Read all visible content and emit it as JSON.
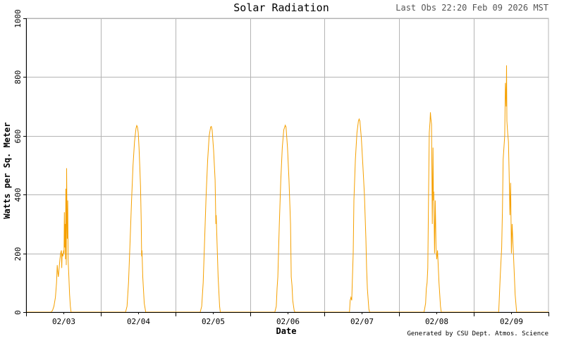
{
  "header": {
    "title": "Solar Radiation",
    "last_obs": "Last Obs 22:20 Feb 09 2026 MST"
  },
  "footer": {
    "credit": "Generated by CSU Dept. Atmos. Science"
  },
  "colors": {
    "series": "#f5a000",
    "grid": "#b4b4b4",
    "axis": "#000000",
    "background": "#ffffff"
  },
  "chart_data": {
    "type": "line",
    "title": "Solar Radiation",
    "xlabel": "Date",
    "ylabel": "Watts per Sq. Meter",
    "ylim": [
      0,
      1000
    ],
    "yticks": [
      0,
      200,
      400,
      600,
      800,
      1000
    ],
    "xlim": [
      2.667,
      9.667
    ],
    "x_unit": "day of February 2026 (fractional)",
    "xtick_labels": [
      "02/03",
      "02/04",
      "02/05",
      "02/06",
      "02/07",
      "02/08",
      "02/09"
    ],
    "xtick_positions": [
      3.167,
      4.167,
      5.167,
      6.167,
      7.167,
      8.167,
      9.167
    ],
    "grid": true,
    "legend": "none",
    "series": [
      {
        "values_format": "[x, y] where x is fractional day of February 2026 and y is W/m²",
        "points": [
          [
            2.6667,
            0
          ],
          [
            3.0,
            0
          ],
          [
            3.02,
            5
          ],
          [
            3.04,
            20
          ],
          [
            3.06,
            50
          ],
          [
            3.075,
            100
          ],
          [
            3.085,
            160
          ],
          [
            3.09,
            140
          ],
          [
            3.1,
            120
          ],
          [
            3.11,
            150
          ],
          [
            3.12,
            180
          ],
          [
            3.13,
            200
          ],
          [
            3.14,
            210
          ],
          [
            3.145,
            150
          ],
          [
            3.15,
            200
          ],
          [
            3.16,
            190
          ],
          [
            3.17,
            210
          ],
          [
            3.175,
            200
          ],
          [
            3.18,
            340
          ],
          [
            3.185,
            220
          ],
          [
            3.19,
            300
          ],
          [
            3.195,
            180
          ],
          [
            3.2,
            420
          ],
          [
            3.205,
            160
          ],
          [
            3.21,
            490
          ],
          [
            3.215,
            330
          ],
          [
            3.22,
            250
          ],
          [
            3.225,
            380
          ],
          [
            3.23,
            180
          ],
          [
            3.24,
            120
          ],
          [
            3.25,
            60
          ],
          [
            3.26,
            20
          ],
          [
            3.27,
            0
          ],
          [
            3.9,
            0
          ],
          [
            4.0,
            0
          ],
          [
            4.02,
            20
          ],
          [
            4.04,
            100
          ],
          [
            4.06,
            240
          ],
          [
            4.08,
            380
          ],
          [
            4.1,
            500
          ],
          [
            4.12,
            580
          ],
          [
            4.14,
            625
          ],
          [
            4.15,
            635
          ],
          [
            4.16,
            630
          ],
          [
            4.17,
            610
          ],
          [
            4.18,
            560
          ],
          [
            4.19,
            500
          ],
          [
            4.2,
            430
          ],
          [
            4.21,
            310
          ],
          [
            4.215,
            190
          ],
          [
            4.22,
            210
          ],
          [
            4.23,
            120
          ],
          [
            4.25,
            30
          ],
          [
            4.27,
            0
          ],
          [
            4.9,
            0
          ],
          [
            5.0,
            0
          ],
          [
            5.02,
            20
          ],
          [
            5.04,
            100
          ],
          [
            5.06,
            250
          ],
          [
            5.08,
            400
          ],
          [
            5.1,
            520
          ],
          [
            5.12,
            600
          ],
          [
            5.14,
            630
          ],
          [
            5.15,
            632
          ],
          [
            5.16,
            620
          ],
          [
            5.18,
            550
          ],
          [
            5.2,
            450
          ],
          [
            5.21,
            300
          ],
          [
            5.215,
            330
          ],
          [
            5.22,
            280
          ],
          [
            5.24,
            120
          ],
          [
            5.26,
            20
          ],
          [
            5.27,
            0
          ],
          [
            5.9,
            0
          ],
          [
            6.0,
            0
          ],
          [
            6.02,
            20
          ],
          [
            6.03,
            80
          ],
          [
            6.04,
            120
          ],
          [
            6.06,
            300
          ],
          [
            6.08,
            450
          ],
          [
            6.1,
            560
          ],
          [
            6.12,
            620
          ],
          [
            6.14,
            636
          ],
          [
            6.15,
            630
          ],
          [
            6.17,
            560
          ],
          [
            6.19,
            450
          ],
          [
            6.21,
            300
          ],
          [
            6.22,
            120
          ],
          [
            6.23,
            90
          ],
          [
            6.24,
            40
          ],
          [
            6.26,
            5
          ],
          [
            6.27,
            0
          ],
          [
            6.9,
            0
          ],
          [
            7.0,
            0
          ],
          [
            7.01,
            40
          ],
          [
            7.02,
            50
          ],
          [
            7.03,
            40
          ],
          [
            7.05,
            200
          ],
          [
            7.06,
            380
          ],
          [
            7.08,
            520
          ],
          [
            7.1,
            610
          ],
          [
            7.12,
            650
          ],
          [
            7.13,
            657
          ],
          [
            7.14,
            650
          ],
          [
            7.16,
            590
          ],
          [
            7.18,
            500
          ],
          [
            7.2,
            400
          ],
          [
            7.22,
            250
          ],
          [
            7.23,
            150
          ],
          [
            7.24,
            80
          ],
          [
            7.26,
            10
          ],
          [
            7.27,
            0
          ],
          [
            7.9,
            0
          ],
          [
            8.0,
            0
          ],
          [
            8.02,
            30
          ],
          [
            8.03,
            80
          ],
          [
            8.04,
            100
          ],
          [
            8.05,
            150
          ],
          [
            8.06,
            400
          ],
          [
            8.07,
            610
          ],
          [
            8.08,
            650
          ],
          [
            8.085,
            680
          ],
          [
            8.09,
            660
          ],
          [
            8.1,
            640
          ],
          [
            8.11,
            300
          ],
          [
            8.12,
            560
          ],
          [
            8.125,
            380
          ],
          [
            8.13,
            410
          ],
          [
            8.14,
            200
          ],
          [
            8.15,
            380
          ],
          [
            8.16,
            220
          ],
          [
            8.17,
            180
          ],
          [
            8.18,
            210
          ],
          [
            8.2,
            100
          ],
          [
            8.22,
            20
          ],
          [
            8.23,
            0
          ],
          [
            8.9,
            0
          ],
          [
            9.0,
            0
          ],
          [
            9.02,
            120
          ],
          [
            9.04,
            220
          ],
          [
            9.05,
            350
          ],
          [
            9.06,
            520
          ],
          [
            9.07,
            560
          ],
          [
            9.08,
            600
          ],
          [
            9.09,
            780
          ],
          [
            9.1,
            700
          ],
          [
            9.105,
            840
          ],
          [
            9.11,
            650
          ],
          [
            9.12,
            610
          ],
          [
            9.13,
            580
          ],
          [
            9.14,
            470
          ],
          [
            9.15,
            330
          ],
          [
            9.16,
            440
          ],
          [
            9.17,
            200
          ],
          [
            9.18,
            300
          ],
          [
            9.2,
            180
          ],
          [
            9.22,
            60
          ],
          [
            9.24,
            0
          ],
          [
            9.6667,
            0
          ]
        ]
      }
    ]
  }
}
